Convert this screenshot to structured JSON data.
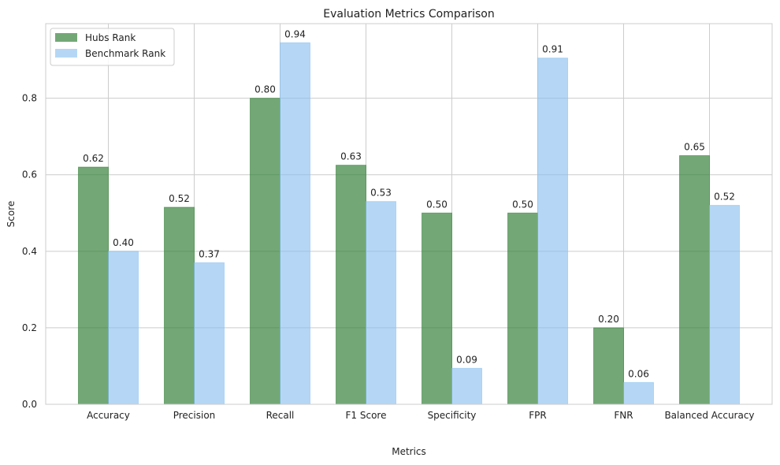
{
  "chart_data": {
    "type": "bar",
    "title": "Evaluation Metrics Comparison",
    "xlabel": "Metrics",
    "ylabel": "Score",
    "categories": [
      "Accuracy",
      "Precision",
      "Recall",
      "F1 Score",
      "Specificity",
      "FPR",
      "FNR",
      "Balanced Accuracy"
    ],
    "series": [
      {
        "name": "Hubs Rank",
        "values": [
          0.62,
          0.515,
          0.8,
          0.625,
          0.5,
          0.5,
          0.2,
          0.65
        ],
        "labels": [
          "0.62",
          "0.52",
          "0.80",
          "0.63",
          "0.50",
          "0.50",
          "0.20",
          "0.65"
        ],
        "color": "#2e7d32",
        "opacity": 0.67
      },
      {
        "name": "Benchmark Rank",
        "values": [
          0.4,
          0.37,
          0.945,
          0.53,
          0.094,
          0.905,
          0.057,
          0.52
        ],
        "labels": [
          "0.40",
          "0.37",
          "0.94",
          "0.53",
          "0.09",
          "0.91",
          "0.06",
          "0.52"
        ],
        "color": "#87bfef",
        "opacity": 0.62
      }
    ],
    "ylim": [
      0,
      0.995
    ],
    "yticks": [
      0.0,
      0.2,
      0.4,
      0.6,
      0.8
    ],
    "ytick_labels": [
      "0.0",
      "0.2",
      "0.4",
      "0.6",
      "0.8"
    ],
    "grid": true,
    "legend_position": "top-left"
  }
}
